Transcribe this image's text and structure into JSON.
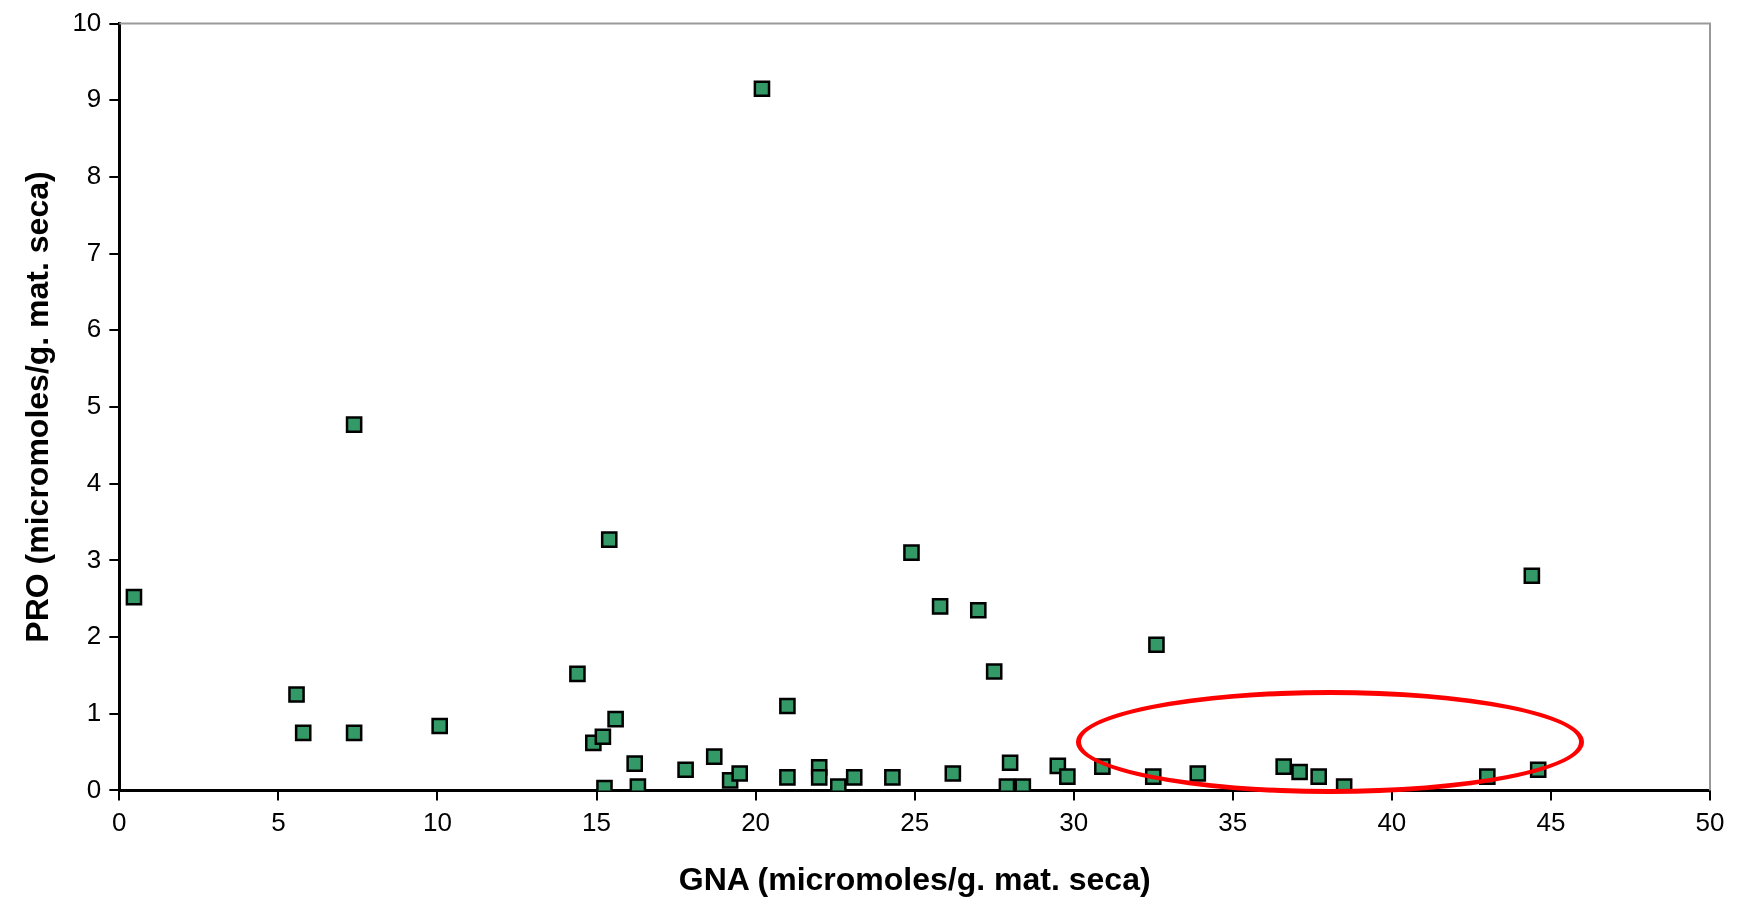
{
  "chart_data": {
    "type": "scatter",
    "xlabel": "GNA (micromoles/g. mat. seca)",
    "ylabel": "PRO (micromoles/g. mat. seca)",
    "xlim": [
      0,
      50
    ],
    "xticks": [
      0,
      5,
      10,
      15,
      20,
      25,
      30,
      35,
      40,
      45,
      50
    ],
    "ylim": [
      0,
      10
    ],
    "yticks": [
      0,
      1,
      2,
      3,
      4,
      5,
      6,
      7,
      8,
      9,
      10
    ],
    "grid": false,
    "legend": false,
    "marker": "square",
    "series": [
      {
        "color": "#339966",
        "x": [
          0.46,
          5.57,
          5.78,
          7.38,
          7.38,
          10.07,
          14.4,
          14.9,
          15.2,
          15.4,
          15.6,
          15.25,
          16.2,
          16.3,
          17.8,
          18.7,
          19.2,
          19.5,
          20.2,
          21.0,
          21.0,
          22.0,
          22.0,
          22.6,
          23.1,
          24.3,
          24.9,
          25.8,
          26.2,
          27.0,
          27.5,
          27.9,
          28.0,
          28.4,
          29.5,
          29.8,
          30.9,
          32.5,
          32.6,
          33.9,
          36.6,
          37.1,
          37.7,
          38.5,
          43.0,
          44.4,
          44.6
        ],
        "values": [
          2.52,
          1.25,
          0.75,
          4.77,
          0.75,
          0.84,
          1.52,
          0.62,
          0.7,
          3.27,
          0.93,
          0.03,
          0.35,
          0.05,
          0.27,
          0.44,
          0.13,
          0.22,
          9.15,
          1.1,
          0.17,
          0.3,
          0.17,
          0.05,
          0.17,
          0.17,
          3.1,
          2.4,
          0.22,
          2.35,
          1.55,
          0.05,
          0.36,
          0.05,
          0.32,
          0.18,
          0.31,
          0.18,
          1.9,
          0.22,
          0.31,
          0.24,
          0.18,
          0.05,
          0.18,
          2.8,
          0.27
        ]
      }
    ]
  }
}
